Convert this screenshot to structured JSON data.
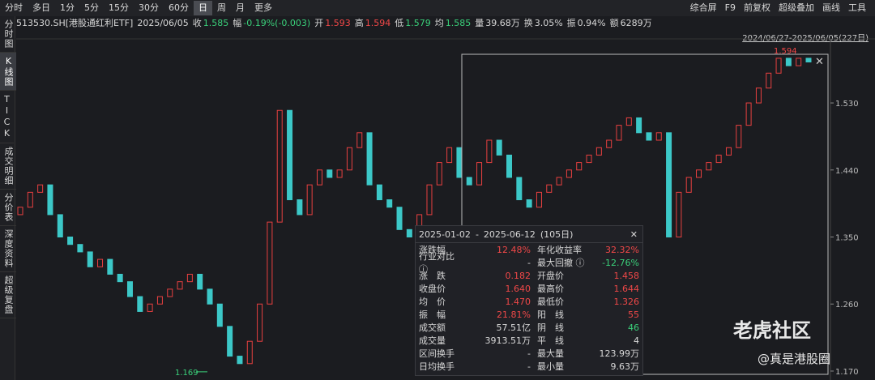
{
  "toolbar": {
    "tabs": [
      "分时",
      "多日",
      "1分",
      "5分",
      "15分",
      "30分",
      "60分",
      "日",
      "周",
      "月",
      "更多"
    ],
    "active": "日",
    "tools": [
      "综合屏",
      "F9",
      "前复权",
      "超级叠加",
      "画线",
      "工具"
    ]
  },
  "info": {
    "symbol": "513530.SH[港股通红利ETF]",
    "date": "2025/06/05",
    "fields": [
      {
        "label": "收",
        "value": "1.585",
        "color": "#3ad07a"
      },
      {
        "label": "幅",
        "value": "-0.19%(-0.003)",
        "color": "#3ad07a"
      },
      {
        "label": "开",
        "value": "1.593",
        "color": "#f04848"
      },
      {
        "label": "高",
        "value": "1.594",
        "color": "#f04848"
      },
      {
        "label": "低",
        "value": "1.579",
        "color": "#3ad07a"
      },
      {
        "label": "均",
        "value": "1.585",
        "color": "#3ad07a"
      },
      {
        "label": "量",
        "value": "39.68万",
        "color": "#d8d8d8"
      },
      {
        "label": "换",
        "value": "3.05%",
        "color": "#d8d8d8"
      },
      {
        "label": "振",
        "value": "0.94%",
        "color": "#d8d8d8"
      },
      {
        "label": "额",
        "value": "6289万",
        "color": "#d8d8d8"
      }
    ],
    "range": "2024/06/27-2025/06/05(227日)"
  },
  "sidebar": [
    "分时图",
    "K线图",
    "TICK",
    "成交明细",
    "分价表",
    "深度资料",
    "超级复盘"
  ],
  "chart_data": {
    "type": "candlestick",
    "up_color": "#e84040",
    "down_color": "#3cc8c8",
    "ylim": [
      1.158,
      1.616
    ],
    "yticks": [
      {
        "value": 1.17,
        "label": "1.170"
      },
      {
        "value": 1.26,
        "label": "1.260"
      },
      {
        "value": 1.35,
        "label": "1.350"
      },
      {
        "value": 1.44,
        "label": "1.440"
      },
      {
        "value": 1.53,
        "label": "1.530"
      }
    ],
    "low_mark": 1.169,
    "high_mark": 1.594,
    "open": [
      1.38,
      1.39,
      1.41,
      1.42,
      1.38,
      1.35,
      1.34,
      1.33,
      1.31,
      1.32,
      1.3,
      1.29,
      1.27,
      1.25,
      1.26,
      1.27,
      1.28,
      1.29,
      1.3,
      1.28,
      1.26,
      1.23,
      1.19,
      1.18,
      1.21,
      1.26,
      1.37,
      1.52,
      1.4,
      1.38,
      1.42,
      1.44,
      1.43,
      1.44,
      1.47,
      1.49,
      1.42,
      1.4,
      1.39,
      1.36,
      1.35,
      1.38,
      1.42,
      1.45,
      1.47,
      1.43,
      1.42,
      1.45,
      1.48,
      1.46,
      1.43,
      1.4,
      1.39,
      1.41,
      1.42,
      1.43,
      1.44,
      1.45,
      1.46,
      1.47,
      1.48,
      1.5,
      1.51,
      1.49,
      1.48,
      1.49,
      1.35,
      1.41,
      1.43,
      1.44,
      1.45,
      1.46,
      1.47,
      1.5,
      1.53,
      1.55,
      1.57,
      1.59,
      1.58,
      1.59
    ],
    "close": [
      1.39,
      1.41,
      1.42,
      1.38,
      1.35,
      1.34,
      1.33,
      1.31,
      1.32,
      1.3,
      1.29,
      1.27,
      1.25,
      1.26,
      1.27,
      1.28,
      1.29,
      1.3,
      1.28,
      1.26,
      1.23,
      1.19,
      1.18,
      1.21,
      1.26,
      1.37,
      1.52,
      1.4,
      1.38,
      1.42,
      1.44,
      1.43,
      1.44,
      1.47,
      1.49,
      1.42,
      1.4,
      1.39,
      1.36,
      1.35,
      1.38,
      1.42,
      1.45,
      1.47,
      1.43,
      1.42,
      1.45,
      1.48,
      1.46,
      1.43,
      1.4,
      1.39,
      1.41,
      1.42,
      1.43,
      1.44,
      1.45,
      1.46,
      1.47,
      1.48,
      1.5,
      1.51,
      1.49,
      1.48,
      1.49,
      1.35,
      1.41,
      1.43,
      1.44,
      1.45,
      1.46,
      1.47,
      1.5,
      1.53,
      1.55,
      1.57,
      1.59,
      1.58,
      1.59,
      1.585
    ]
  },
  "stats": {
    "start": "2025-01-02",
    "sep": "-",
    "end": "2025-06-12",
    "days": "(105日)",
    "rows": [
      [
        {
          "label": "涨跌幅",
          "value": "12.48%",
          "color": "#f04848"
        },
        {
          "label": "年化收益率",
          "value": "32.32%",
          "color": "#f04848"
        }
      ],
      [
        {
          "label": "行业对比 ⓘ",
          "value": "-",
          "color": "#d8d8d8"
        },
        {
          "label": "最大回撤 ⓘ",
          "value": "-12.76%",
          "color": "#3ad07a"
        }
      ],
      [
        {
          "label": "涨　跌",
          "value": "0.182",
          "color": "#f04848"
        },
        {
          "label": "开盘价",
          "value": "1.458",
          "color": "#f04848"
        }
      ],
      [
        {
          "label": "收盘价",
          "value": "1.640",
          "color": "#f04848"
        },
        {
          "label": "最高价",
          "value": "1.644",
          "color": "#f04848"
        }
      ],
      [
        {
          "label": "均　价",
          "value": "1.470",
          "color": "#f04848"
        },
        {
          "label": "最低价",
          "value": "1.326",
          "color": "#f04848"
        }
      ],
      [
        {
          "label": "振　幅",
          "value": "21.81%",
          "color": "#f04848"
        },
        {
          "label": "阳　线",
          "value": "55",
          "color": "#f04848"
        }
      ],
      [
        {
          "label": "成交额",
          "value": "57.51亿",
          "color": "#d8d8d8"
        },
        {
          "label": "阴　线",
          "value": "46",
          "color": "#3ad07a"
        }
      ],
      [
        {
          "label": "成交量",
          "value": "3913.51万",
          "color": "#d8d8d8"
        },
        {
          "label": "平　线",
          "value": "4",
          "color": "#d8d8d8"
        }
      ],
      [
        {
          "label": "区间换手",
          "value": "-",
          "color": "#d8d8d8"
        },
        {
          "label": "最大量",
          "value": "123.99万",
          "color": "#d8d8d8"
        }
      ],
      [
        {
          "label": "日均换手",
          "value": "-",
          "color": "#d8d8d8"
        },
        {
          "label": "最小量",
          "value": "9.63万",
          "color": "#d8d8d8"
        }
      ]
    ]
  },
  "watermark": {
    "brand": "老虎社区",
    "handle": "@真是港股圈"
  }
}
